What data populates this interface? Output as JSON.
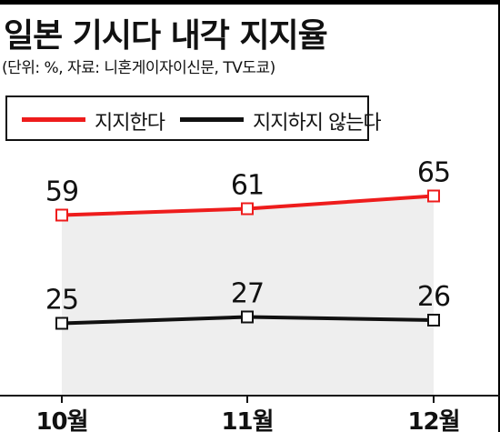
{
  "title": "일본 기시다 내각 지지율",
  "subtitle": "(단위: %, 자료: 니혼게이자이신문, TV도쿄)",
  "legend": {
    "approve": "지지한다",
    "disapprove": "지지하지 않는다"
  },
  "colors": {
    "approve": "#ee1c1c",
    "disapprove": "#111111",
    "fill": "#eeeeee"
  },
  "chart_data": {
    "type": "line",
    "categories": [
      "10월",
      "11월",
      "12월"
    ],
    "series": [
      {
        "name": "지지한다",
        "values": [
          59,
          61,
          65
        ]
      },
      {
        "name": "지지하지 않는다",
        "values": [
          25,
          27,
          26
        ]
      }
    ],
    "grid": false,
    "legend_position": "top-left"
  }
}
